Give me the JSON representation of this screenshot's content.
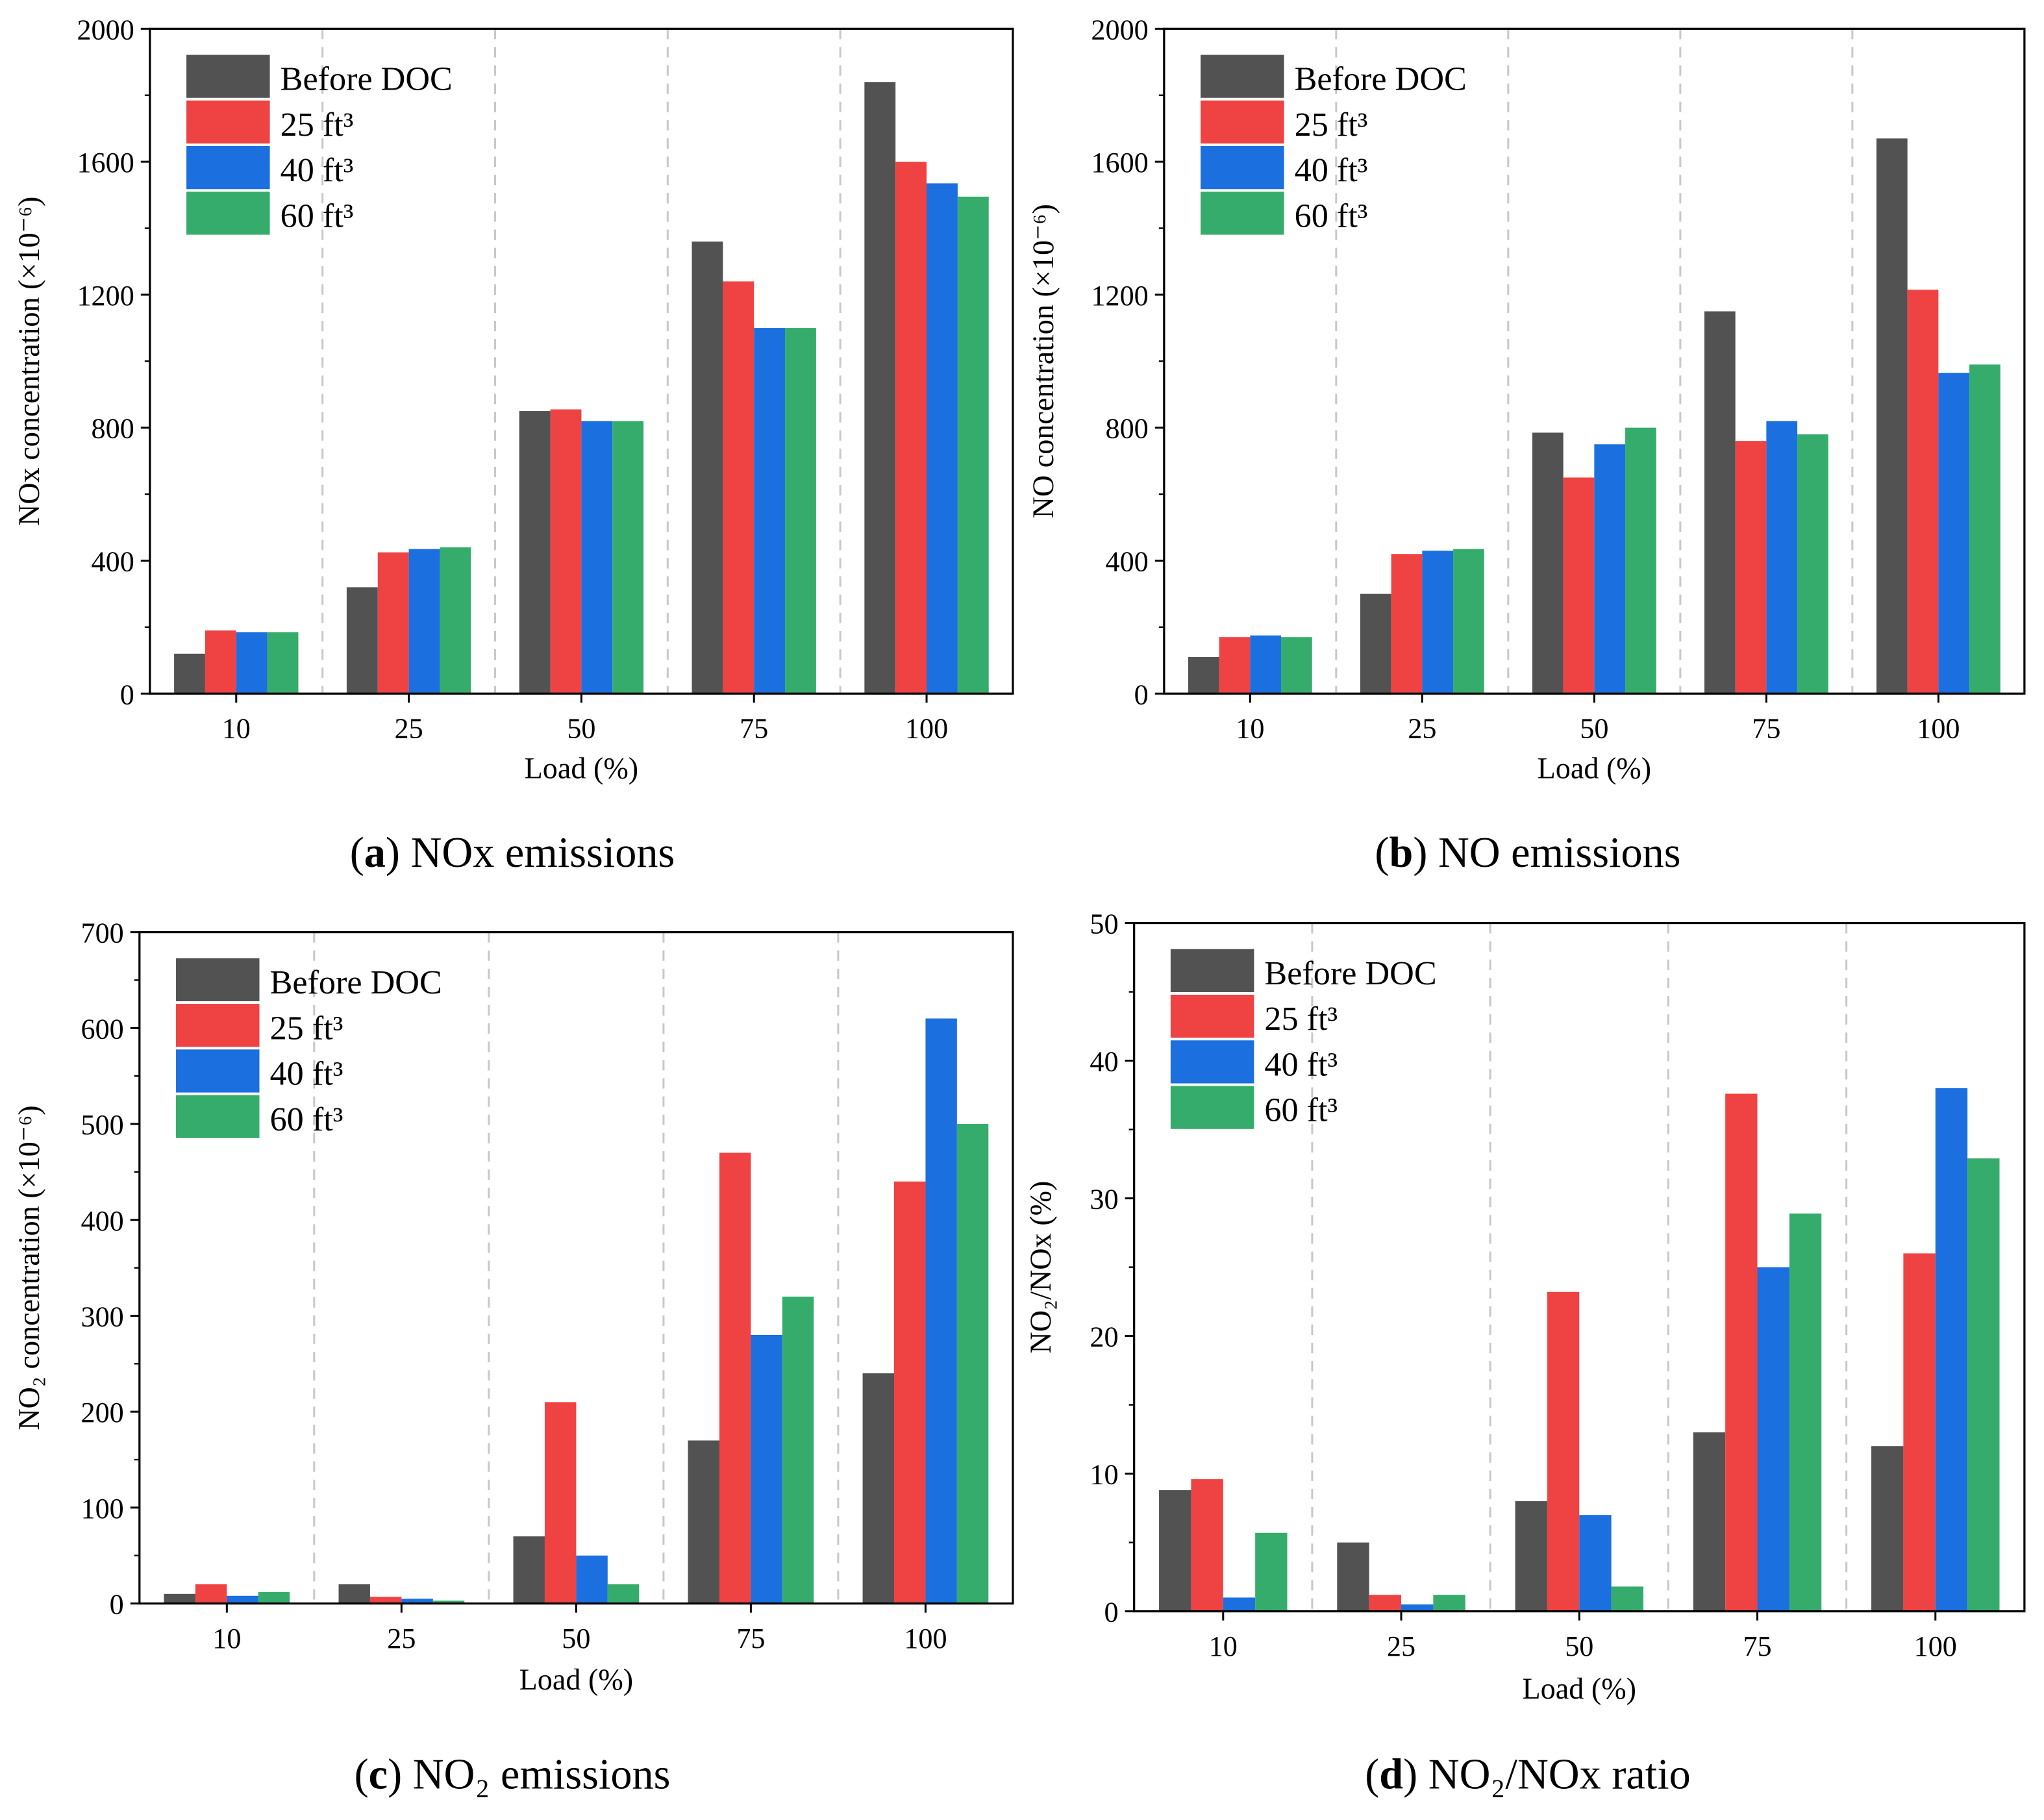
{
  "colors": {
    "before": "#525252",
    "ft25": "#ef4343",
    "ft40": "#1b6fde",
    "ft60": "#36ac6c"
  },
  "chart_data": [
    {
      "type": "bar",
      "caption_letter": "a",
      "caption_text": "NOx emissions",
      "xlabel": "Load (%)",
      "ylabel": "NOx concentration (×10⁻⁶)",
      "ylim": [
        0,
        2000
      ],
      "yticks": [
        0,
        400,
        800,
        1200,
        1600,
        2000
      ],
      "categories": [
        "10",
        "25",
        "50",
        "75",
        "100"
      ],
      "legend_position": "top-left",
      "series": [
        {
          "name": "Before DOC",
          "values": [
            120,
            320,
            850,
            1360,
            1840
          ]
        },
        {
          "name": "25 ft³",
          "values": [
            190,
            425,
            855,
            1240,
            1600
          ]
        },
        {
          "name": "40 ft³",
          "values": [
            185,
            435,
            820,
            1100,
            1535
          ]
        },
        {
          "name": "60 ft³",
          "values": [
            185,
            440,
            820,
            1100,
            1495
          ]
        }
      ]
    },
    {
      "type": "bar",
      "caption_letter": "b",
      "caption_text": "NO emissions",
      "xlabel": "Load (%)",
      "ylabel": "NO concentration (×10⁻⁶)",
      "ylim": [
        0,
        2000
      ],
      "yticks": [
        0,
        400,
        800,
        1200,
        1600,
        2000
      ],
      "categories": [
        "10",
        "25",
        "50",
        "75",
        "100"
      ],
      "legend_position": "top-left",
      "series": [
        {
          "name": "Before DOC",
          "values": [
            110,
            300,
            785,
            1150,
            1670
          ]
        },
        {
          "name": "25 ft³",
          "values": [
            170,
            420,
            650,
            760,
            1215
          ]
        },
        {
          "name": "40 ft³",
          "values": [
            175,
            430,
            750,
            820,
            965
          ]
        },
        {
          "name": "60 ft³",
          "values": [
            170,
            435,
            800,
            780,
            990
          ]
        }
      ]
    },
    {
      "type": "bar",
      "caption_letter": "c",
      "caption_text": "NO₂ emissions",
      "xlabel": "Load (%)",
      "ylabel": "NO₂ concentration (×10⁻⁶)",
      "ylim": [
        0,
        700
      ],
      "yticks": [
        0,
        100,
        200,
        300,
        400,
        500,
        600,
        700
      ],
      "categories": [
        "10",
        "25",
        "50",
        "75",
        "100"
      ],
      "legend_position": "top-left",
      "series": [
        {
          "name": "Before DOC",
          "values": [
            10,
            20,
            70,
            170,
            240
          ]
        },
        {
          "name": "25 ft³",
          "values": [
            20,
            7,
            210,
            470,
            440
          ]
        },
        {
          "name": "40 ft³",
          "values": [
            8,
            5,
            50,
            280,
            610
          ]
        },
        {
          "name": "60 ft³",
          "values": [
            12,
            3,
            20,
            320,
            500
          ]
        }
      ]
    },
    {
      "type": "bar",
      "caption_letter": "d",
      "caption_text": "NO₂/NOx ratio",
      "xlabel": "Load (%)",
      "ylabel": "NO₂/NOx (%)",
      "ylim": [
        0,
        50
      ],
      "yticks": [
        0,
        10,
        20,
        30,
        40,
        50
      ],
      "categories": [
        "10",
        "25",
        "50",
        "75",
        "100"
      ],
      "legend_position": "top-left",
      "series": [
        {
          "name": "Before DOC",
          "values": [
            8.8,
            5.0,
            8.0,
            13.0,
            12.0
          ]
        },
        {
          "name": "25 ft³",
          "values": [
            9.6,
            1.2,
            23.2,
            37.6,
            26.0
          ]
        },
        {
          "name": "40 ft³",
          "values": [
            1.0,
            0.5,
            7.0,
            25.0,
            38.0
          ]
        },
        {
          "name": "60 ft³",
          "values": [
            5.7,
            1.2,
            1.8,
            28.9,
            32.9
          ]
        }
      ]
    }
  ]
}
